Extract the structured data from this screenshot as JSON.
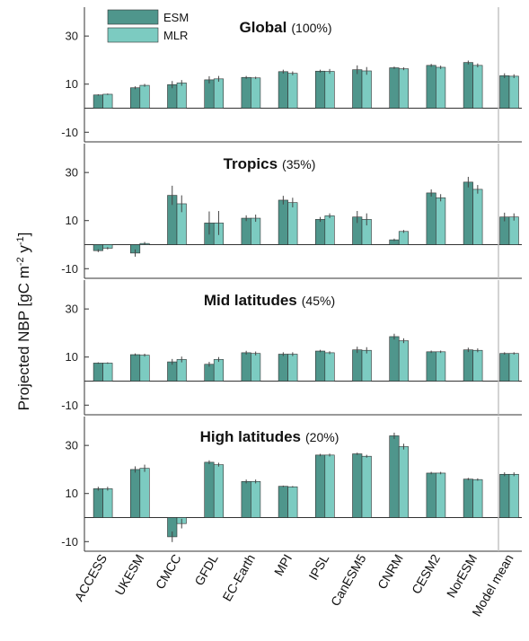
{
  "chart_data": {
    "type": "bar",
    "ylabel": "Projected NBP [gC m⁻² y⁻¹]",
    "ylabel_parts": {
      "main": "Projected NBP [gC m",
      "exp1": "-2",
      "mid": " y",
      "exp2": "-1",
      "end": "]"
    },
    "categories": [
      "ACCESS",
      "UKESM",
      "CMCC",
      "GFDL",
      "EC-Earth",
      "MPI",
      "IPSL",
      "CanESM5",
      "CNRM",
      "CESM2",
      "NorESM",
      "Model mean"
    ],
    "legend": [
      {
        "name": "ESM",
        "color": "#4f968c"
      },
      {
        "name": "MLR",
        "color": "#7ccbc1"
      }
    ],
    "ylim": [
      -14,
      42
    ],
    "yticks": [
      30,
      10,
      -10
    ],
    "ytick_labels": [
      "30",
      "10",
      "-10"
    ],
    "panels": [
      {
        "title": "Global",
        "share": "(100%)",
        "series": [
          {
            "name": "ESM",
            "values": [
              5.5,
              8.5,
              9.8,
              11.8,
              12.8,
              15.2,
              15.4,
              16.0,
              16.8,
              17.8,
              19.0,
              13.5
            ],
            "err": [
              0.3,
              0.6,
              1.5,
              1.5,
              0.6,
              0.8,
              0.6,
              1.8,
              0.5,
              0.6,
              0.8,
              1.0
            ]
          },
          {
            "name": "MLR",
            "values": [
              5.8,
              9.5,
              10.5,
              12.2,
              12.6,
              14.5,
              15.3,
              15.5,
              16.4,
              17.0,
              17.8,
              13.3
            ],
            "err": [
              0.3,
              0.6,
              1.2,
              1.2,
              0.5,
              0.8,
              1.0,
              1.6,
              0.6,
              0.7,
              0.8,
              0.8
            ]
          }
        ]
      },
      {
        "title": "Tropics",
        "share": "(35%)",
        "series": [
          {
            "name": "ESM",
            "values": [
              -2.5,
              -3.5,
              20.5,
              9.0,
              11.0,
              18.5,
              10.5,
              11.5,
              2.0,
              21.5,
              26.0,
              11.5
            ],
            "err": [
              0.6,
              1.5,
              4.0,
              4.8,
              1.2,
              1.8,
              1.0,
              2.5,
              0.5,
              1.5,
              2.2,
              1.8
            ]
          },
          {
            "name": "MLR",
            "values": [
              -1.5,
              0.5,
              17.0,
              9.0,
              11.0,
              17.5,
              12.0,
              10.5,
              5.5,
              19.5,
              23.0,
              11.5
            ],
            "err": [
              0.5,
              0.6,
              3.5,
              5.0,
              1.5,
              2.0,
              1.0,
              2.5,
              0.6,
              1.5,
              1.8,
              1.5
            ]
          }
        ]
      },
      {
        "title": "Mid latitudes",
        "share": "(45%)",
        "series": [
          {
            "name": "ESM",
            "values": [
              7.5,
              11.0,
              8.0,
              7.0,
              11.8,
              11.2,
              12.5,
              13.0,
              18.5,
              12.2,
              13.0,
              11.5
            ],
            "err": [
              0.3,
              0.5,
              1.2,
              1.0,
              0.8,
              0.8,
              0.5,
              1.3,
              1.2,
              0.5,
              0.9,
              0.5
            ]
          },
          {
            "name": "MLR",
            "values": [
              7.5,
              10.8,
              9.0,
              9.0,
              11.5,
              11.2,
              11.8,
              12.8,
              16.8,
              12.2,
              12.8,
              11.5
            ],
            "err": [
              0.3,
              0.6,
              1.2,
              1.0,
              0.8,
              0.8,
              0.6,
              1.3,
              1.0,
              0.5,
              0.8,
              0.5
            ]
          }
        ]
      },
      {
        "title": "High latitudes",
        "share": "(20%)",
        "series": [
          {
            "name": "ESM",
            "values": [
              12.0,
              20.0,
              -8.0,
              23.0,
              15.0,
              13.0,
              26.0,
              26.5,
              34.0,
              18.5,
              16.0,
              18.0
            ],
            "err": [
              0.8,
              1.3,
              2.2,
              0.8,
              0.8,
              0.3,
              0.5,
              0.5,
              1.3,
              0.5,
              0.5,
              0.8
            ]
          },
          {
            "name": "MLR",
            "values": [
              12.0,
              20.5,
              -2.5,
              22.0,
              15.0,
              12.8,
              26.0,
              25.5,
              29.5,
              18.5,
              15.8,
              18.0
            ],
            "err": [
              0.8,
              1.5,
              2.0,
              0.8,
              0.8,
              0.3,
              0.6,
              0.6,
              1.2,
              0.5,
              0.5,
              0.8
            ]
          }
        ]
      }
    ]
  }
}
